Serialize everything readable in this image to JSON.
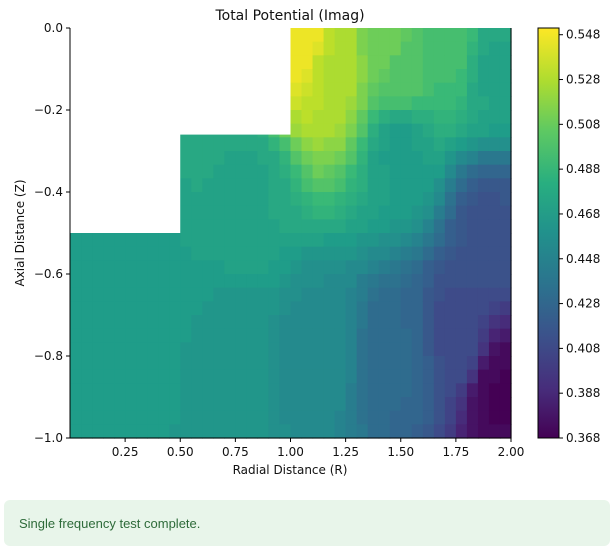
{
  "chart_data": {
    "type": "contour",
    "title": "Total Potential (Imag)",
    "xlabel": "Radial Distance (R)",
    "ylabel": "Axial Distance (Z)",
    "xlim": [
      0.0,
      2.0
    ],
    "ylim": [
      -1.0,
      0.0
    ],
    "x_ticks": [
      "0.25",
      "0.50",
      "0.75",
      "1.00",
      "1.25",
      "1.50",
      "1.75",
      "2.00"
    ],
    "x_tick_values": [
      0.25,
      0.5,
      0.75,
      1.0,
      1.25,
      1.5,
      1.75,
      2.0
    ],
    "y_ticks": [
      "0.0",
      "−0.2",
      "−0.4",
      "−0.6",
      "−0.8",
      "−1.0"
    ],
    "y_tick_values": [
      0.0,
      -0.2,
      -0.4,
      -0.6,
      -0.8,
      -1.0
    ],
    "colormap": "viridis",
    "colorbar": {
      "min": 0.368,
      "max": 0.551,
      "ticks": [
        "0.548",
        "0.528",
        "0.508",
        "0.488",
        "0.468",
        "0.448",
        "0.428",
        "0.408",
        "0.388",
        "0.368"
      ],
      "tick_values": [
        0.548,
        0.528,
        0.508,
        0.488,
        0.468,
        0.448,
        0.428,
        0.408,
        0.388,
        0.368
      ]
    },
    "masked_regions": [
      {
        "r": [
          0.0,
          1.0
        ],
        "z": [
          -0.26,
          0.0
        ]
      },
      {
        "r": [
          0.0,
          0.5
        ],
        "z": [
          -0.5,
          -0.26
        ]
      }
    ],
    "field_samples": [
      {
        "r": 1.05,
        "z": -0.02,
        "value": 0.548
      },
      {
        "r": 1.2,
        "z": -0.1,
        "value": 0.53
      },
      {
        "r": 1.45,
        "z": -0.05,
        "value": 0.51
      },
      {
        "r": 1.5,
        "z": -0.1,
        "value": 0.5
      },
      {
        "r": 1.75,
        "z": -0.05,
        "value": 0.495
      },
      {
        "r": 1.9,
        "z": -0.1,
        "value": 0.475
      },
      {
        "r": 1.5,
        "z": -0.3,
        "value": 0.47
      },
      {
        "r": 0.8,
        "z": -0.4,
        "value": 0.475
      },
      {
        "r": 0.25,
        "z": -0.7,
        "value": 0.468
      },
      {
        "r": 0.75,
        "z": -0.8,
        "value": 0.465
      },
      {
        "r": 1.1,
        "z": -0.8,
        "value": 0.455
      },
      {
        "r": 1.5,
        "z": -0.8,
        "value": 0.43
      },
      {
        "r": 1.75,
        "z": -0.75,
        "value": 0.41
      },
      {
        "r": 1.9,
        "z": -0.5,
        "value": 0.415
      },
      {
        "r": 1.95,
        "z": -0.9,
        "value": 0.37
      }
    ]
  },
  "status_message": "Single frequency test complete."
}
